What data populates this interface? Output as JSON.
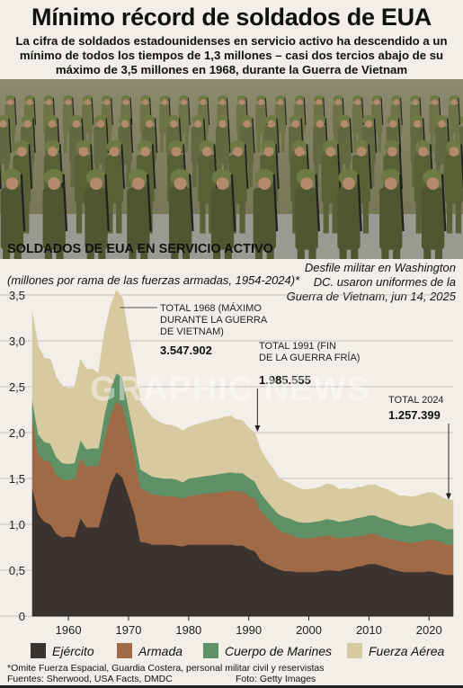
{
  "header": {
    "title": "Mínimo récord de soldados de EUA",
    "standfirst": "La cifra de soldados estadounidenses en servicio activo ha descendido a un mínimo de todos los tiempos de 1,3 millones – casi dos tercios abajo de su máximo de 3,5 millones en 1968, durante la Guerra de Vietnam"
  },
  "photo": {
    "caption": "Desfile militar en Washington DC. usaron uniformes de la Guerra de Vietnam, jun 14, 2025",
    "credit": "Foto: Getty Images"
  },
  "watermark": "GRAPHIC NEWS",
  "footer": {
    "footnote": "*Omite Fuerza Espacial, Guardia Costera, personal militar civil y reservistas",
    "sources": "Fuentes: Sherwood, USA Facts, DMDC"
  },
  "colors": {
    "background": "#f2efe9",
    "ejercito": "#3b3330",
    "armada": "#a06a46",
    "marines": "#5e9166",
    "fuerza_aerea": "#d7c9a0"
  },
  "chart_data": {
    "type": "area",
    "stacked": true,
    "title": "SOLDADOS DE EUA EN SERVICIO ACTIVO",
    "subtitle": "(millones por rama de las fuerzas armadas, 1954-2024)*",
    "ylim": [
      0,
      3.5
    ],
    "xlim": [
      1954,
      2024
    ],
    "y_ticks": [
      "0",
      "0,5",
      "1,0",
      "1,5",
      "2,0",
      "2,5",
      "3,0",
      "3,5"
    ],
    "y_tick_values": [
      0,
      0.5,
      1.0,
      1.5,
      2.0,
      2.5,
      3.0,
      3.5
    ],
    "x_ticks": [
      "1960",
      "1970",
      "1980",
      "1990",
      "2000",
      "2010",
      "2020"
    ],
    "x_tick_values": [
      1960,
      1970,
      1980,
      1990,
      2000,
      2010,
      2020
    ],
    "grid": "horizontal",
    "x": [
      1954,
      1955,
      1956,
      1957,
      1958,
      1959,
      1960,
      1961,
      1962,
      1963,
      1964,
      1965,
      1966,
      1967,
      1968,
      1969,
      1970,
      1971,
      1972,
      1973,
      1974,
      1975,
      1976,
      1977,
      1978,
      1979,
      1980,
      1981,
      1982,
      1983,
      1984,
      1985,
      1986,
      1987,
      1988,
      1989,
      1990,
      1991,
      1992,
      1993,
      1994,
      1995,
      1996,
      1997,
      1998,
      1999,
      2000,
      2001,
      2002,
      2003,
      2004,
      2005,
      2006,
      2007,
      2008,
      2009,
      2010,
      2011,
      2012,
      2013,
      2014,
      2015,
      2016,
      2017,
      2018,
      2019,
      2020,
      2021,
      2022,
      2023,
      2024
    ],
    "series": [
      {
        "name": "Ejército",
        "color": "#3b3330",
        "values": [
          1.4,
          1.11,
          1.03,
          1.0,
          0.9,
          0.86,
          0.87,
          0.86,
          1.07,
          0.97,
          0.97,
          0.97,
          1.2,
          1.44,
          1.57,
          1.51,
          1.32,
          1.12,
          0.81,
          0.8,
          0.78,
          0.78,
          0.78,
          0.78,
          0.77,
          0.76,
          0.78,
          0.78,
          0.78,
          0.78,
          0.78,
          0.78,
          0.78,
          0.78,
          0.77,
          0.77,
          0.73,
          0.71,
          0.61,
          0.57,
          0.54,
          0.51,
          0.49,
          0.49,
          0.48,
          0.48,
          0.48,
          0.48,
          0.49,
          0.5,
          0.5,
          0.49,
          0.51,
          0.52,
          0.54,
          0.55,
          0.57,
          0.57,
          0.55,
          0.53,
          0.51,
          0.49,
          0.48,
          0.48,
          0.48,
          0.48,
          0.49,
          0.48,
          0.46,
          0.45,
          0.45
        ]
      },
      {
        "name": "Armada",
        "color": "#a06a46",
        "values": [
          0.73,
          0.66,
          0.67,
          0.68,
          0.64,
          0.63,
          0.62,
          0.63,
          0.66,
          0.66,
          0.67,
          0.67,
          0.74,
          0.75,
          0.77,
          0.78,
          0.69,
          0.62,
          0.59,
          0.56,
          0.55,
          0.54,
          0.53,
          0.53,
          0.53,
          0.52,
          0.53,
          0.54,
          0.55,
          0.56,
          0.56,
          0.57,
          0.58,
          0.59,
          0.59,
          0.59,
          0.58,
          0.57,
          0.54,
          0.51,
          0.47,
          0.43,
          0.42,
          0.4,
          0.38,
          0.37,
          0.37,
          0.38,
          0.38,
          0.38,
          0.37,
          0.36,
          0.35,
          0.34,
          0.33,
          0.33,
          0.33,
          0.33,
          0.32,
          0.32,
          0.33,
          0.33,
          0.33,
          0.32,
          0.33,
          0.34,
          0.35,
          0.35,
          0.35,
          0.33,
          0.33
        ]
      },
      {
        "name": "Cuerpo de Marines",
        "color": "#5e9166",
        "values": [
          0.22,
          0.21,
          0.2,
          0.2,
          0.19,
          0.18,
          0.17,
          0.18,
          0.19,
          0.19,
          0.19,
          0.19,
          0.26,
          0.29,
          0.31,
          0.31,
          0.26,
          0.21,
          0.2,
          0.2,
          0.19,
          0.19,
          0.19,
          0.19,
          0.19,
          0.18,
          0.19,
          0.19,
          0.19,
          0.19,
          0.2,
          0.2,
          0.2,
          0.2,
          0.2,
          0.2,
          0.2,
          0.19,
          0.19,
          0.18,
          0.17,
          0.17,
          0.17,
          0.17,
          0.17,
          0.17,
          0.17,
          0.17,
          0.17,
          0.18,
          0.18,
          0.18,
          0.18,
          0.19,
          0.2,
          0.2,
          0.2,
          0.2,
          0.2,
          0.2,
          0.19,
          0.18,
          0.18,
          0.18,
          0.18,
          0.18,
          0.18,
          0.18,
          0.17,
          0.17,
          0.17
        ]
      },
      {
        "name": "Fuerza Aérea",
        "color": "#d7c9a0",
        "values": [
          0.95,
          0.96,
          0.91,
          0.92,
          0.87,
          0.84,
          0.82,
          0.82,
          0.88,
          0.87,
          0.86,
          0.82,
          0.89,
          0.9,
          0.9,
          0.86,
          0.79,
          0.76,
          0.73,
          0.69,
          0.64,
          0.61,
          0.59,
          0.58,
          0.57,
          0.56,
          0.56,
          0.57,
          0.58,
          0.59,
          0.6,
          0.6,
          0.61,
          0.61,
          0.58,
          0.57,
          0.54,
          0.53,
          0.47,
          0.44,
          0.43,
          0.4,
          0.39,
          0.38,
          0.37,
          0.36,
          0.36,
          0.36,
          0.37,
          0.38,
          0.38,
          0.35,
          0.35,
          0.33,
          0.33,
          0.33,
          0.33,
          0.33,
          0.33,
          0.33,
          0.32,
          0.31,
          0.32,
          0.32,
          0.32,
          0.33,
          0.33,
          0.33,
          0.32,
          0.32,
          0.31
        ]
      }
    ],
    "annotations": [
      {
        "year": 1968,
        "label": "TOTAL 1968 (MÁXIMO DURANTE LA GUERRA DE VIETNAM)",
        "value_label": "3.547.902"
      },
      {
        "year": 1991,
        "label": "TOTAL 1991 (FIN DE LA GUERRA FRÍA)",
        "value_label": "1.985.555"
      },
      {
        "year": 2024,
        "label": "TOTAL 2024",
        "value_label": "1.257.399"
      }
    ]
  }
}
